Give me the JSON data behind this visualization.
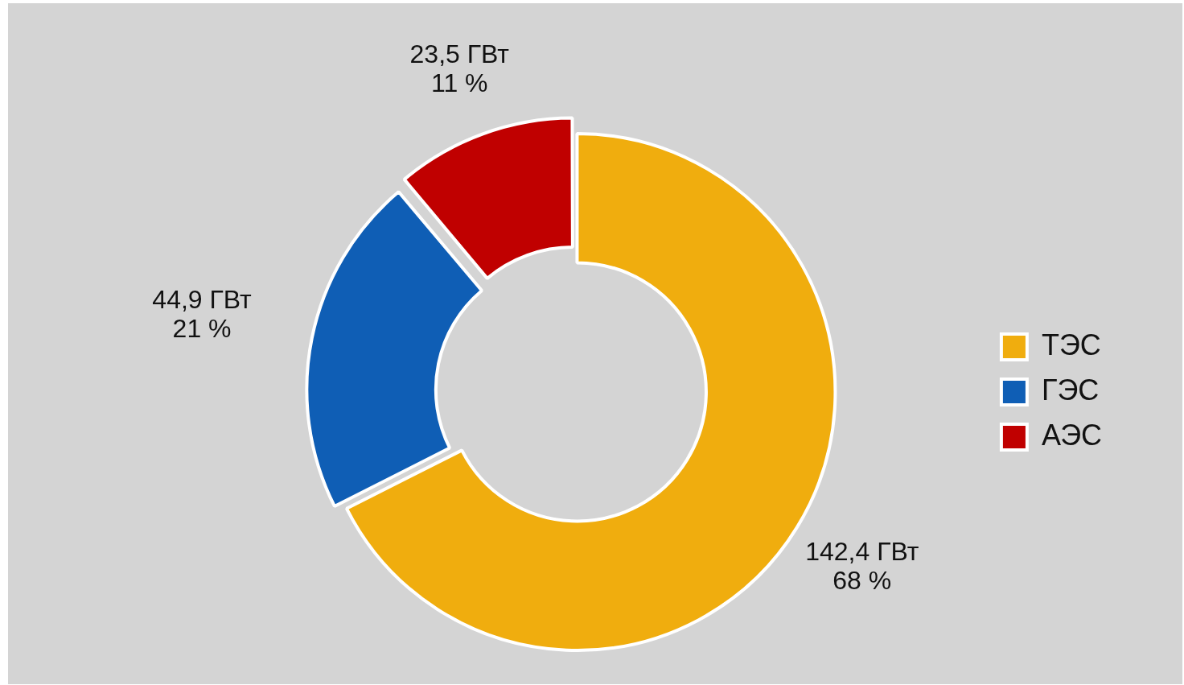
{
  "chart_data": {
    "type": "donut",
    "categories": [
      "ТЭС",
      "ГЭС",
      "АЭС"
    ],
    "values": [
      142.4,
      44.9,
      23.5
    ],
    "colors": [
      "#f0ad0e",
      "#0f5eb5",
      "#c00000"
    ],
    "value_labels": [
      "142,4 ГВт\n68 %",
      "44,9 ГВт\n21 %",
      "23,5 ГВт\n11 %"
    ],
    "legend": "right"
  }
}
